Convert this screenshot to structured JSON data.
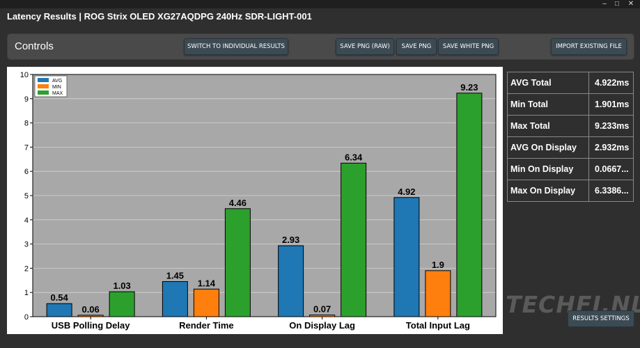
{
  "window": {
    "title": "Latency Results | ROG Strix OLED XG27AQDPG 240Hz SDR-LIGHT-001"
  },
  "controls": {
    "title": "Controls",
    "switch_label": "SWITCH TO INDIVIDUAL RESULTS",
    "save_raw_label": "SAVE PNG (RAW)",
    "save_png_label": "SAVE PNG",
    "save_white_label": "SAVE WHITE PNG",
    "import_label": "IMPORT EXISTING FILE"
  },
  "stats": [
    {
      "label": "AVG Total",
      "value": "4.922ms"
    },
    {
      "label": "Min Total",
      "value": "1.901ms"
    },
    {
      "label": "Max Total",
      "value": "9.233ms"
    },
    {
      "label": "AVG On Display",
      "value": "2.932ms"
    },
    {
      "label": "Min On Display",
      "value": "0.0667..."
    },
    {
      "label": "Max On Display",
      "value": "6.3386..."
    }
  ],
  "watermark": "TECHFI.NL",
  "results_settings_label": "RESULTS SETTINGS",
  "colors": {
    "avg": "#1f77b4",
    "min": "#ff7f0e",
    "max": "#2ca02c",
    "plot_bg": "#a8a8a8"
  },
  "chart_data": {
    "type": "bar",
    "categories": [
      "USB Polling Delay",
      "Render Time",
      "On Display Lag",
      "Total Input Lag"
    ],
    "series": [
      {
        "name": "AVG",
        "values": [
          0.54,
          1.45,
          2.93,
          4.92
        ],
        "labels": [
          "0.54",
          "1.45",
          "2.93",
          "4.92"
        ]
      },
      {
        "name": "MIN",
        "values": [
          0.06,
          1.14,
          0.07,
          1.9
        ],
        "labels": [
          "0.06",
          "1.14",
          "0.07",
          "1.9"
        ]
      },
      {
        "name": "MAX",
        "values": [
          1.03,
          4.46,
          6.34,
          9.23
        ],
        "labels": [
          "1.03",
          "4.46",
          "6.34",
          "9.23"
        ]
      }
    ],
    "yticks": [
      "0",
      "1",
      "2",
      "3",
      "4",
      "5",
      "6",
      "7",
      "8",
      "9",
      "10"
    ],
    "ylim": [
      0,
      10
    ],
    "grid": true,
    "legend": "top-left"
  }
}
